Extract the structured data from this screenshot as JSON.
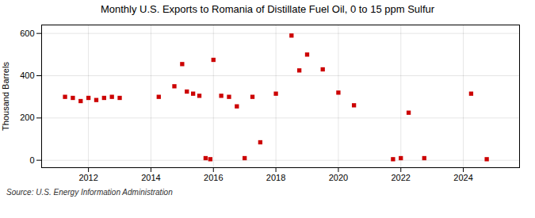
{
  "chart_data": {
    "type": "scatter",
    "title": "Monthly U.S. Exports to Romania of Distillate Fuel Oil, 0 to 15 ppm Sulfur",
    "ylabel": "Thousand Barrels",
    "caption": "Source: U.S. Energy Information Administration",
    "color": "#cc0000",
    "marker": "square",
    "grid": true,
    "xlim": [
      2010.5,
      2025.8
    ],
    "ylim": [
      -35,
      640
    ],
    "xticks": [
      2012,
      2014,
      2016,
      2018,
      2020,
      2022,
      2024
    ],
    "yticks": [
      0,
      200,
      400,
      600
    ],
    "x": [
      2011.25,
      2011.5,
      2011.75,
      2012.0,
      2012.25,
      2012.5,
      2012.75,
      2013.0,
      2014.25,
      2014.75,
      2015.0,
      2015.15,
      2015.35,
      2015.55,
      2015.75,
      2015.9,
      2016.0,
      2016.25,
      2016.5,
      2016.75,
      2017.0,
      2017.25,
      2017.5,
      2018.0,
      2018.5,
      2018.75,
      2019.0,
      2019.5,
      2020.0,
      2020.5,
      2021.75,
      2022.0,
      2022.25,
      2022.75,
      2024.25,
      2024.75
    ],
    "values": [
      300,
      295,
      280,
      295,
      285,
      295,
      300,
      295,
      300,
      350,
      455,
      325,
      315,
      305,
      10,
      5,
      475,
      305,
      300,
      255,
      10,
      300,
      85,
      315,
      590,
      425,
      500,
      430,
      320,
      260,
      5,
      10,
      225,
      10,
      315,
      5
    ]
  }
}
